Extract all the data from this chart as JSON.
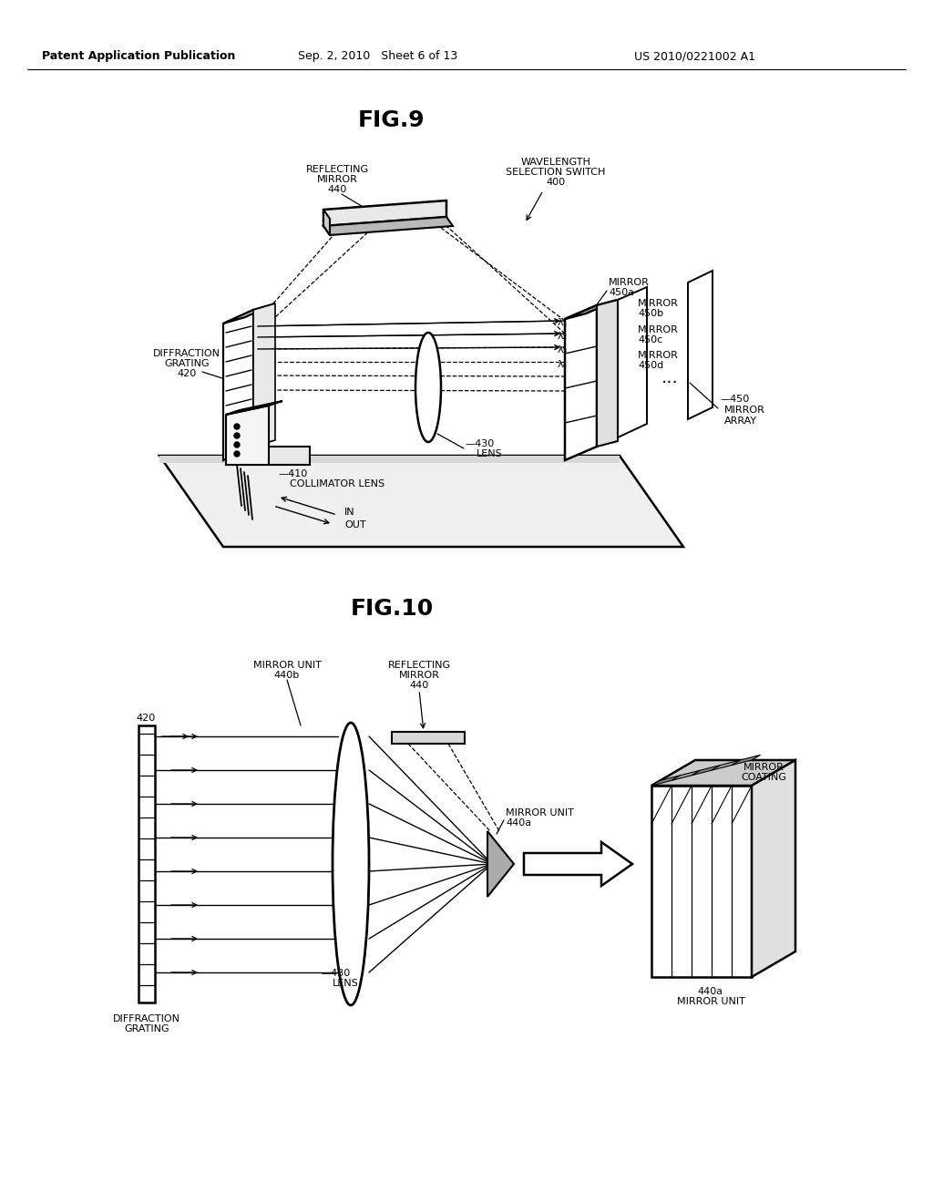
{
  "bg_color": "#ffffff",
  "header_left": "Patent Application Publication",
  "header_mid": "Sep. 2, 2010   Sheet 6 of 13",
  "header_right": "US 2010/0221002 A1",
  "fig9_title": "FIG.9",
  "fig10_title": "FIG.10"
}
